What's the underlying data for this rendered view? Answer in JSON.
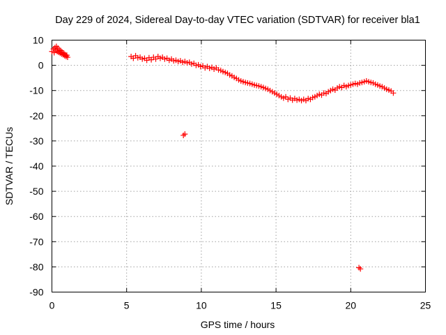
{
  "chart_data": {
    "type": "scatter",
    "title": "Day 229 of 2024, Sidereal Day-to-day VTEC variation (SDTVAR) for receiver bla1",
    "xlabel": "GPS time / hours",
    "ylabel": "SDTVAR / TECUs",
    "xlim": [
      0,
      25
    ],
    "ylim": [
      -90,
      10
    ],
    "xticks": [
      0,
      5,
      10,
      15,
      20,
      25
    ],
    "yticks": [
      10,
      0,
      -10,
      -20,
      -30,
      -40,
      -50,
      -60,
      -70,
      -80,
      -90
    ],
    "grid": true,
    "marker": "plus",
    "marker_color": "#ff0000",
    "series": [
      {
        "name": "SDTVAR",
        "points": [
          [
            0.0,
            5.5
          ],
          [
            0.1,
            6.5
          ],
          [
            0.15,
            5.0
          ],
          [
            0.2,
            7.0
          ],
          [
            0.25,
            6.0
          ],
          [
            0.3,
            7.5
          ],
          [
            0.35,
            5.5
          ],
          [
            0.4,
            6.8
          ],
          [
            0.45,
            5.2
          ],
          [
            0.5,
            6.2
          ],
          [
            0.55,
            4.8
          ],
          [
            0.6,
            5.8
          ],
          [
            0.65,
            4.5
          ],
          [
            0.7,
            5.2
          ],
          [
            0.75,
            4.2
          ],
          [
            0.8,
            4.8
          ],
          [
            0.85,
            3.8
          ],
          [
            0.9,
            4.2
          ],
          [
            0.95,
            3.5
          ],
          [
            1.0,
            4.0
          ],
          [
            1.05,
            3.2
          ],
          [
            5.3,
            3.5
          ],
          [
            5.45,
            2.8
          ],
          [
            5.6,
            3.8
          ],
          [
            5.75,
            3.0
          ],
          [
            5.9,
            3.2
          ],
          [
            6.05,
            2.5
          ],
          [
            6.2,
            2.8
          ],
          [
            6.35,
            2.0
          ],
          [
            6.5,
            3.0
          ],
          [
            6.65,
            2.2
          ],
          [
            6.8,
            3.2
          ],
          [
            6.95,
            2.5
          ],
          [
            7.1,
            3.5
          ],
          [
            7.25,
            2.8
          ],
          [
            7.4,
            3.2
          ],
          [
            7.55,
            2.5
          ],
          [
            7.7,
            2.8
          ],
          [
            7.85,
            2.0
          ],
          [
            8.0,
            2.5
          ],
          [
            8.15,
            1.8
          ],
          [
            8.3,
            2.0
          ],
          [
            8.45,
            1.5
          ],
          [
            8.6,
            1.8
          ],
          [
            8.75,
            1.2
          ],
          [
            8.9,
            1.5
          ],
          [
            9.05,
            1.0
          ],
          [
            9.2,
            1.2
          ],
          [
            9.35,
            0.5
          ],
          [
            9.5,
            0.8
          ],
          [
            9.65,
            0.0
          ],
          [
            9.8,
            0.2
          ],
          [
            9.95,
            -0.5
          ],
          [
            10.1,
            -0.2
          ],
          [
            10.25,
            -1.0
          ],
          [
            10.4,
            -0.5
          ],
          [
            10.55,
            -1.2
          ],
          [
            10.7,
            -0.8
          ],
          [
            10.85,
            -1.5
          ],
          [
            11.0,
            -1.0
          ],
          [
            11.15,
            -1.8
          ],
          [
            11.3,
            -2.0
          ],
          [
            11.45,
            -2.5
          ],
          [
            11.6,
            -2.8
          ],
          [
            11.75,
            -3.2
          ],
          [
            11.9,
            -3.8
          ],
          [
            12.05,
            -4.2
          ],
          [
            12.2,
            -4.8
          ],
          [
            12.35,
            -5.2
          ],
          [
            12.5,
            -5.8
          ],
          [
            12.65,
            -6.2
          ],
          [
            12.8,
            -6.5
          ],
          [
            12.95,
            -6.8
          ],
          [
            13.1,
            -7.0
          ],
          [
            13.25,
            -7.2
          ],
          [
            13.4,
            -7.5
          ],
          [
            13.55,
            -7.8
          ],
          [
            13.7,
            -8.0
          ],
          [
            13.85,
            -8.2
          ],
          [
            14.0,
            -8.5
          ],
          [
            14.15,
            -8.8
          ],
          [
            14.3,
            -9.2
          ],
          [
            14.45,
            -9.5
          ],
          [
            14.6,
            -10.0
          ],
          [
            14.75,
            -10.5
          ],
          [
            14.9,
            -11.0
          ],
          [
            15.05,
            -11.5
          ],
          [
            15.2,
            -12.0
          ],
          [
            15.35,
            -12.5
          ],
          [
            15.5,
            -13.0
          ],
          [
            15.65,
            -12.5
          ],
          [
            15.8,
            -13.5
          ],
          [
            15.95,
            -13.0
          ],
          [
            16.1,
            -13.8
          ],
          [
            16.25,
            -13.2
          ],
          [
            16.4,
            -13.8
          ],
          [
            16.55,
            -13.5
          ],
          [
            16.7,
            -14.0
          ],
          [
            16.85,
            -13.5
          ],
          [
            17.0,
            -14.0
          ],
          [
            17.15,
            -13.2
          ],
          [
            17.3,
            -13.5
          ],
          [
            17.45,
            -12.8
          ],
          [
            17.6,
            -12.5
          ],
          [
            17.75,
            -12.0
          ],
          [
            17.9,
            -11.5
          ],
          [
            18.05,
            -11.8
          ],
          [
            18.2,
            -11.0
          ],
          [
            18.35,
            -11.2
          ],
          [
            18.5,
            -10.5
          ],
          [
            18.65,
            -10.0
          ],
          [
            18.8,
            -9.5
          ],
          [
            18.95,
            -9.8
          ],
          [
            19.1,
            -9.0
          ],
          [
            19.25,
            -8.5
          ],
          [
            19.4,
            -8.8
          ],
          [
            19.55,
            -8.0
          ],
          [
            19.7,
            -8.5
          ],
          [
            19.85,
            -8.0
          ],
          [
            20.0,
            -7.8
          ],
          [
            20.15,
            -7.5
          ],
          [
            20.3,
            -7.2
          ],
          [
            20.45,
            -7.5
          ],
          [
            20.6,
            -7.0
          ],
          [
            20.75,
            -6.8
          ],
          [
            20.9,
            -6.5
          ],
          [
            21.05,
            -6.2
          ],
          [
            21.2,
            -6.5
          ],
          [
            21.35,
            -6.8
          ],
          [
            21.5,
            -7.0
          ],
          [
            21.65,
            -7.5
          ],
          [
            21.8,
            -7.8
          ],
          [
            21.95,
            -8.2
          ],
          [
            22.1,
            -8.5
          ],
          [
            22.25,
            -9.0
          ],
          [
            22.4,
            -9.5
          ],
          [
            22.55,
            -9.8
          ],
          [
            22.7,
            -10.2
          ],
          [
            22.85,
            -11.0
          ],
          [
            8.8,
            -27.8
          ],
          [
            8.9,
            -27.3
          ],
          [
            20.55,
            -80.3
          ],
          [
            20.65,
            -80.8
          ]
        ]
      }
    ]
  }
}
